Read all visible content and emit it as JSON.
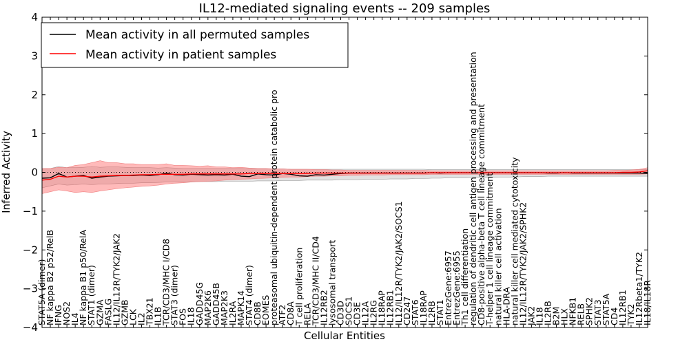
{
  "chart_data": {
    "type": "line",
    "title": "IL12-mediated signaling events -- 209 samples",
    "xlabel": "Cellular Entities",
    "ylabel": "Inferred Activity",
    "ylim": [
      -4,
      4
    ],
    "yticks": [
      -4,
      -3,
      -2,
      -1,
      0,
      1,
      2,
      3,
      4
    ],
    "ytick_labels": [
      "−4",
      "−3",
      "−2",
      "−1",
      "0",
      "1",
      "2",
      "3",
      "4"
    ],
    "legend": {
      "placement": "top-left",
      "entries": [
        {
          "label": "Mean activity in all permuted samples",
          "color": "#000000"
        },
        {
          "label": "Mean activity in patient samples",
          "color": "#ff0000"
        }
      ]
    },
    "categories": [
      "STAT5A (dimer)",
      "NF kappa B2 p52/RelB",
      "IFNG",
      "NOS2",
      "IL4",
      "NF kappa B1 p50/RelA",
      "STAT1 (dimer)",
      "GZMA",
      "FASLG",
      "IL12/IL12R/TYK2/JAK2",
      "GZMB",
      "LCK",
      "IL2",
      "TBX21",
      "IL1B",
      "TCR/CD3/MHC I/CD8",
      "STAT3 (dimer)",
      "FOS",
      "IL18",
      "GADD45G",
      "MAP2K6",
      "GADD45B",
      "MAP2K3",
      "IL2RA",
      "MAPK14",
      "STAT4 (dimer)",
      "CD8B",
      "EOMES",
      "proteasomal ubiquitin-dependent protein catabolic process",
      "ATF2",
      "CD8A",
      "T cell proliferation",
      "RELA",
      "TCR/CD3/MHC II/CD4",
      "IL12RB2",
      "lysosomal transport",
      "CD3D",
      "SOCS1",
      "CD3E",
      "IL12A",
      "IL2RG",
      "IL18RAP",
      "IL12RB1",
      "IL12/IL12R/TYK2/JAK2/SOCS1",
      "CD247",
      "STAT6",
      "IL18RAP",
      "IL2RB",
      "STAT1",
      "EntrezGene:6957",
      "EntrezGene:6955",
      "Th1 cell differentiation",
      "regulation of dendritic cell antigen processing and presentation",
      "CD8-positive alpha-beta T cell lineage commitment",
      "T-helper 1 cell lineage commitment",
      "natural killer cell activation",
      "HLA-DRA",
      "natural killer cell mediated cytotoxicity",
      "IL12/IL12R/TYK2/JAK2/SPHK2",
      "JAK2",
      "IL18",
      "IL2RB",
      "B2M",
      "HLX",
      "NFKB1",
      "RELB",
      "SPHK2",
      "STAT3",
      "STAT5A",
      "CD4",
      "IL12RB1",
      "TYK2",
      "IL12Rbeta1/TYK2",
      "IL18/IL18R"
    ],
    "tick_label_display": [
      "STAT5A (dimer)",
      "NF kappa B2 p52/RelB",
      "IFNG",
      "NOS2",
      "IL4",
      "NF kappa B1 p50/RelA",
      "STAT1 (dimer)",
      "GZMA",
      "FASLG",
      "IL12/IL12R/TYK2/JAK2",
      "GZMB",
      "LCK",
      "IL2",
      "TBX21",
      "IL1B",
      "TCR/CD3/MHC I/CD8",
      "STAT3 (dimer)",
      "FOS",
      "IL18",
      "GADD45G",
      "MAP2K6",
      "GADD45B",
      "MAP2K3",
      "IL2RA",
      "MAPK14",
      "STAT4 (dimer)",
      "CD8B",
      "EOMES",
      "proteasomal ubiquitin-dependent protein catabolic pro",
      "ATF2",
      "CD8A",
      "T cell proliferation",
      "RELA",
      "TCR/CD3/MHC II/CD4",
      "IL12RB2",
      "lysosomal transport",
      "CD3D",
      "SOCS1",
      "CD3E",
      "IL12A",
      "IL2RG",
      "IL18RAP",
      "IL12RB1",
      "IL12/IL12R/TYK2/JAK2/SOCS1",
      "CD247",
      "STAT6",
      "IL18RAP",
      "IL2RB",
      "STAT1",
      "EntrezGene:6957",
      "EntrezGene:6955",
      "Th1 cell differentiation",
      "regulation of dendritic cell antigen processing and presentation",
      "CD8-positive alpha-beta T cell lineage commitment",
      "T-helper 1 cell lineage commitment",
      "natural killer cell activation",
      "HLA-DRA",
      "natural killer cell mediated cytotoxicity",
      "IL12/IL12R/TYK2/JAK2/SPHK2",
      "JAK2",
      "IL18",
      "IL2RB",
      "B2M",
      "HLX",
      "NFKB1",
      "RELB",
      "SPHK2",
      "STAT3",
      "STAT5A",
      "CD4",
      "IL12RB1",
      "TYK2",
      "IL12Rbeta1/TYK2",
      "IL18/IL18R"
    ],
    "series": [
      {
        "name": "Mean activity in all permuted samples",
        "color": "#000000",
        "values": [
          -0.15,
          -0.14,
          -0.03,
          -0.12,
          -0.1,
          -0.08,
          -0.15,
          -0.12,
          -0.1,
          -0.09,
          -0.08,
          -0.08,
          -0.07,
          -0.08,
          -0.06,
          -0.02,
          -0.06,
          -0.07,
          -0.05,
          -0.06,
          -0.07,
          -0.06,
          -0.07,
          -0.05,
          -0.1,
          -0.11,
          -0.04,
          -0.06,
          -0.07,
          -0.03,
          -0.05,
          -0.09,
          -0.1,
          -0.06,
          -0.07,
          -0.05,
          -0.03,
          -0.02,
          -0.02,
          -0.02,
          -0.02,
          -0.02,
          -0.02,
          -0.02,
          -0.02,
          -0.02,
          -0.02,
          -0.01,
          -0.02,
          -0.01,
          -0.01,
          -0.01,
          -0.01,
          -0.01,
          -0.01,
          -0.01,
          -0.01,
          -0.01,
          -0.01,
          -0.01,
          -0.01,
          -0.02,
          -0.02,
          -0.01,
          -0.02,
          -0.02,
          -0.02,
          -0.02,
          -0.02,
          -0.02,
          -0.02,
          -0.02,
          -0.02,
          -0.03
        ],
        "upper": [
          0.08,
          0.1,
          0.15,
          0.12,
          0.12,
          0.13,
          0.15,
          0.13,
          0.14,
          0.14,
          0.13,
          0.12,
          0.12,
          0.12,
          0.11,
          0.12,
          0.11,
          0.1,
          0.1,
          0.1,
          0.1,
          0.1,
          0.1,
          0.1,
          0.1,
          0.09,
          0.09,
          0.09,
          0.09,
          0.09,
          0.08,
          0.08,
          0.08,
          0.08,
          0.08,
          0.08,
          0.08,
          0.08,
          0.08,
          0.08,
          0.08,
          0.08,
          0.08,
          0.08,
          0.08,
          0.08,
          0.08,
          0.07,
          0.07,
          0.07,
          0.07,
          0.07,
          0.07,
          0.07,
          0.07,
          0.07,
          0.07,
          0.07,
          0.07,
          0.07,
          0.07,
          0.07,
          0.07,
          0.07,
          0.07,
          0.07,
          0.07,
          0.07,
          0.07,
          0.07,
          0.07,
          0.07,
          0.07,
          0.07
        ],
        "lower": [
          -0.4,
          -0.35,
          -0.3,
          -0.33,
          -0.32,
          -0.3,
          -0.32,
          -0.3,
          -0.3,
          -0.29,
          -0.28,
          -0.28,
          -0.27,
          -0.27,
          -0.26,
          -0.25,
          -0.25,
          -0.25,
          -0.24,
          -0.24,
          -0.24,
          -0.24,
          -0.23,
          -0.23,
          -0.23,
          -0.23,
          -0.22,
          -0.22,
          -0.22,
          -0.21,
          -0.21,
          -0.21,
          -0.2,
          -0.2,
          -0.2,
          -0.2,
          -0.19,
          -0.19,
          -0.19,
          -0.18,
          -0.18,
          -0.18,
          -0.17,
          -0.17,
          -0.17,
          -0.16,
          -0.16,
          -0.15,
          -0.15,
          -0.14,
          -0.14,
          -0.14,
          -0.13,
          -0.13,
          -0.13,
          -0.12,
          -0.12,
          -0.12,
          -0.11,
          -0.11,
          -0.11,
          -0.1,
          -0.1,
          -0.1,
          -0.1,
          -0.1,
          -0.1,
          -0.1,
          -0.1,
          -0.1,
          -0.1,
          -0.1,
          -0.1,
          -0.1
        ]
      },
      {
        "name": "Mean activity in patient samples",
        "color": "#ff0000",
        "values": [
          -0.2,
          -0.18,
          -0.1,
          -0.12,
          -0.1,
          -0.1,
          -0.12,
          -0.1,
          -0.09,
          -0.08,
          -0.08,
          -0.07,
          -0.06,
          -0.06,
          -0.05,
          -0.05,
          -0.05,
          -0.05,
          -0.04,
          -0.04,
          -0.04,
          -0.04,
          -0.04,
          -0.04,
          -0.04,
          -0.03,
          -0.03,
          -0.03,
          -0.03,
          -0.03,
          -0.03,
          -0.03,
          -0.03,
          -0.02,
          -0.02,
          -0.02,
          -0.02,
          -0.02,
          -0.02,
          -0.02,
          -0.02,
          -0.02,
          -0.02,
          -0.02,
          -0.02,
          -0.02,
          -0.02,
          -0.01,
          -0.01,
          -0.01,
          -0.01,
          -0.01,
          -0.01,
          -0.01,
          -0.01,
          -0.01,
          -0.01,
          -0.01,
          -0.01,
          -0.01,
          -0.01,
          -0.01,
          -0.01,
          -0.01,
          -0.01,
          -0.01,
          -0.01,
          -0.01,
          -0.01,
          -0.01,
          0.0,
          0.0,
          0.01,
          0.04
        ],
        "upper": [
          0.1,
          0.1,
          0.13,
          0.12,
          0.18,
          0.2,
          0.25,
          0.3,
          0.25,
          0.25,
          0.22,
          0.22,
          0.2,
          0.2,
          0.2,
          0.22,
          0.18,
          0.18,
          0.17,
          0.16,
          0.17,
          0.14,
          0.14,
          0.12,
          0.13,
          0.11,
          0.1,
          0.1,
          0.09,
          0.09,
          0.08,
          0.08,
          0.08,
          0.07,
          0.07,
          0.06,
          0.06,
          0.05,
          0.05,
          0.05,
          0.05,
          0.05,
          0.05,
          0.05,
          0.05,
          0.05,
          0.05,
          0.04,
          0.04,
          0.04,
          0.04,
          0.04,
          0.04,
          0.04,
          0.04,
          0.04,
          0.04,
          0.04,
          0.04,
          0.04,
          0.04,
          0.04,
          0.04,
          0.04,
          0.04,
          0.04,
          0.04,
          0.04,
          0.04,
          0.05,
          0.05,
          0.06,
          0.08,
          0.12
        ],
        "lower": [
          -0.55,
          -0.5,
          -0.45,
          -0.48,
          -0.52,
          -0.5,
          -0.52,
          -0.48,
          -0.45,
          -0.42,
          -0.4,
          -0.38,
          -0.36,
          -0.35,
          -0.33,
          -0.3,
          -0.28,
          -0.27,
          -0.25,
          -0.24,
          -0.23,
          -0.22,
          -0.2,
          -0.19,
          -0.18,
          -0.17,
          -0.16,
          -0.15,
          -0.14,
          -0.13,
          -0.12,
          -0.12,
          -0.11,
          -0.1,
          -0.1,
          -0.09,
          -0.09,
          -0.08,
          -0.08,
          -0.07,
          -0.07,
          -0.07,
          -0.06,
          -0.06,
          -0.06,
          -0.06,
          -0.06,
          -0.05,
          -0.05,
          -0.05,
          -0.05,
          -0.05,
          -0.05,
          -0.05,
          -0.05,
          -0.05,
          -0.05,
          -0.05,
          -0.05,
          -0.05,
          -0.05,
          -0.05,
          -0.05,
          -0.05,
          -0.05,
          -0.05,
          -0.05,
          -0.05,
          -0.05,
          -0.05,
          -0.05,
          -0.05,
          -0.05,
          -0.04
        ]
      }
    ],
    "reference_line": {
      "y": 0,
      "style": "dotted"
    },
    "grid": false
  }
}
